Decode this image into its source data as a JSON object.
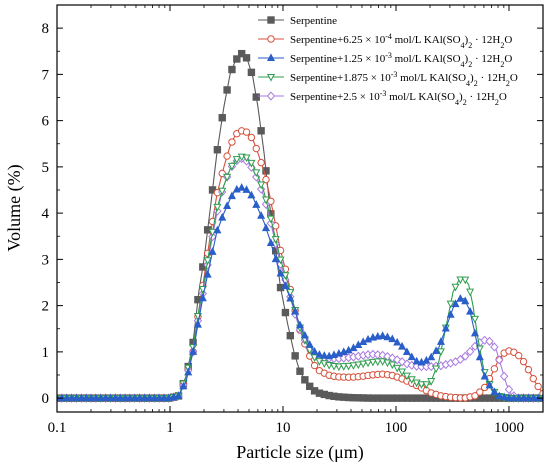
{
  "chart_data": {
    "type": "line",
    "title": "",
    "xlabel": "Particle size (μm)",
    "ylabel": "Volume (%)",
    "xscale": "log",
    "xlim": [
      0.1,
      2000
    ],
    "ylim": [
      -0.3,
      8.5
    ],
    "x_ticks": [
      0.1,
      1,
      10,
      100,
      1000
    ],
    "x_tick_labels": [
      "0.1",
      "1",
      "10",
      "100",
      "1000"
    ],
    "y_ticks": [
      0,
      1,
      2,
      3,
      4,
      5,
      6,
      7,
      8
    ],
    "y_tick_labels": [
      "0",
      "1",
      "2",
      "3",
      "4",
      "5",
      "6",
      "7",
      "8"
    ],
    "grid": false,
    "legend_position": "top-right",
    "series": [
      {
        "name": "Serpentine",
        "legend": {
          "base": "Serpentine",
          "sup_coef": "",
          "exp": "",
          "tail": "",
          "h2o_pre": "",
          "h2o_sub": "",
          "h2o_post": ""
        },
        "color": "#5a5a5a",
        "marker": "square-filled",
        "points": [
          [
            0.1,
            0
          ],
          [
            0.5,
            0
          ],
          [
            1.0,
            0
          ],
          [
            1.2,
            0.05
          ],
          [
            1.4,
            0.5
          ],
          [
            1.6,
            1.2
          ],
          [
            1.8,
            2.3
          ],
          [
            2.0,
            3.0
          ],
          [
            2.3,
            4.2
          ],
          [
            2.6,
            5.3
          ],
          [
            3.0,
            6.3
          ],
          [
            3.4,
            7.0
          ],
          [
            3.8,
            7.3
          ],
          [
            4.3,
            7.45
          ],
          [
            4.8,
            7.35
          ],
          [
            5.4,
            6.95
          ],
          [
            6.0,
            6.3
          ],
          [
            6.8,
            5.3
          ],
          [
            7.6,
            4.2
          ],
          [
            8.5,
            3.3
          ],
          [
            9.5,
            2.4
          ],
          [
            11,
            1.6
          ],
          [
            12.5,
            1.0
          ],
          [
            14,
            0.6
          ],
          [
            16,
            0.35
          ],
          [
            18,
            0.2
          ],
          [
            20,
            0.12
          ],
          [
            25,
            0.06
          ],
          [
            30,
            0.03
          ],
          [
            40,
            0.01
          ],
          [
            60,
            0
          ],
          [
            100,
            0
          ],
          [
            1000,
            0
          ],
          [
            2000,
            0
          ]
        ]
      },
      {
        "name": "Serpentine+6.25 × 10-4 mol/L KAl(SO4)2 · 12H2O",
        "legend": {
          "base": "Serpentine+6.25 × 10",
          "exp": "-4",
          "tail": " mol/L KAl(SO",
          "sub": "4",
          "tail2": ")",
          "sub2": "2",
          "h2o_pre": " · 12H",
          "h2o_sub": "2",
          "h2o_post": "O"
        },
        "color": "#d4503c",
        "marker": "circle-open",
        "points": [
          [
            0.1,
            0
          ],
          [
            0.5,
            0
          ],
          [
            1.0,
            0
          ],
          [
            1.2,
            0.05
          ],
          [
            1.4,
            0.5
          ],
          [
            1.6,
            1.0
          ],
          [
            1.8,
            1.9
          ],
          [
            2.0,
            2.6
          ],
          [
            2.3,
            3.6
          ],
          [
            2.6,
            4.4
          ],
          [
            3.0,
            5.0
          ],
          [
            3.4,
            5.45
          ],
          [
            3.8,
            5.7
          ],
          [
            4.3,
            5.78
          ],
          [
            4.8,
            5.75
          ],
          [
            5.4,
            5.6
          ],
          [
            6.0,
            5.3
          ],
          [
            6.8,
            4.9
          ],
          [
            7.6,
            4.4
          ],
          [
            8.5,
            3.8
          ],
          [
            9.5,
            3.2
          ],
          [
            11,
            2.6
          ],
          [
            12.5,
            2.0
          ],
          [
            14,
            1.5
          ],
          [
            16,
            1.1
          ],
          [
            18,
            0.8
          ],
          [
            20,
            0.62
          ],
          [
            25,
            0.5
          ],
          [
            30,
            0.46
          ],
          [
            40,
            0.45
          ],
          [
            50,
            0.47
          ],
          [
            60,
            0.5
          ],
          [
            75,
            0.52
          ],
          [
            90,
            0.5
          ],
          [
            110,
            0.43
          ],
          [
            130,
            0.35
          ],
          [
            160,
            0.25
          ],
          [
            200,
            0.12
          ],
          [
            250,
            0.05
          ],
          [
            300,
            0.02
          ],
          [
            400,
            0
          ],
          [
            500,
            0.05
          ],
          [
            600,
            0.2
          ],
          [
            700,
            0.5
          ],
          [
            800,
            0.8
          ],
          [
            900,
            0.97
          ],
          [
            1000,
            1.02
          ],
          [
            1150,
            0.98
          ],
          [
            1300,
            0.85
          ],
          [
            1500,
            0.6
          ],
          [
            1700,
            0.35
          ],
          [
            2000,
            0.1
          ]
        ]
      },
      {
        "name": "Serpentine+1.25 × 10-3 mol/L KAl(SO4)2 · 12H2O",
        "legend": {
          "base": "Serpentine+1.25 × 10",
          "exp": "-3",
          "tail": " mol/L KAl(SO",
          "sub": "4",
          "tail2": ")",
          "sub2": "2",
          "h2o_pre": " · 12H",
          "h2o_sub": "2",
          "h2o_post": "O"
        },
        "color": "#2a5ec8",
        "marker": "triangle-filled",
        "points": [
          [
            0.1,
            0
          ],
          [
            0.5,
            0
          ],
          [
            1.0,
            0
          ],
          [
            1.2,
            0.05
          ],
          [
            1.4,
            0.4
          ],
          [
            1.6,
            1.0
          ],
          [
            1.8,
            1.7
          ],
          [
            2.0,
            2.3
          ],
          [
            2.3,
            3.0
          ],
          [
            2.6,
            3.6
          ],
          [
            3.0,
            4.0
          ],
          [
            3.4,
            4.3
          ],
          [
            3.8,
            4.5
          ],
          [
            4.3,
            4.55
          ],
          [
            4.8,
            4.5
          ],
          [
            5.4,
            4.35
          ],
          [
            6.0,
            4.1
          ],
          [
            6.8,
            3.8
          ],
          [
            7.6,
            3.45
          ],
          [
            8.5,
            3.05
          ],
          [
            9.5,
            2.7
          ],
          [
            11,
            2.3
          ],
          [
            12.5,
            1.95
          ],
          [
            14,
            1.6
          ],
          [
            16,
            1.3
          ],
          [
            18,
            1.07
          ],
          [
            20,
            0.95
          ],
          [
            25,
            0.9
          ],
          [
            30,
            0.95
          ],
          [
            40,
            1.05
          ],
          [
            50,
            1.2
          ],
          [
            60,
            1.3
          ],
          [
            75,
            1.35
          ],
          [
            90,
            1.3
          ],
          [
            110,
            1.15
          ],
          [
            130,
            0.95
          ],
          [
            150,
            0.8
          ],
          [
            170,
            0.77
          ],
          [
            200,
            0.85
          ],
          [
            240,
            1.1
          ],
          [
            280,
            1.55
          ],
          [
            320,
            1.95
          ],
          [
            360,
            2.15
          ],
          [
            400,
            2.15
          ],
          [
            450,
            1.9
          ],
          [
            500,
            1.4
          ],
          [
            550,
            0.9
          ],
          [
            600,
            0.5
          ],
          [
            700,
            0.2
          ],
          [
            800,
            0.05
          ],
          [
            1000,
            0
          ],
          [
            2000,
            0
          ]
        ]
      },
      {
        "name": "Serpentine+1.875 × 10-3 mol/L KAl(SO4)2 · 12H2O",
        "legend": {
          "base": "Serpentine+1.875 × 10",
          "exp": "-3",
          "tail": " mol/L KAl(SO",
          "sub": "4",
          "tail2": ")",
          "sub2": "2",
          "h2o_pre": " · 12H",
          "h2o_sub": "2",
          "h2o_post": "O"
        },
        "color": "#2e9e4e",
        "marker": "triangle-down-open",
        "points": [
          [
            0.1,
            0
          ],
          [
            0.5,
            0
          ],
          [
            1.0,
            0
          ],
          [
            1.2,
            0.05
          ],
          [
            1.4,
            0.5
          ],
          [
            1.6,
            1.1
          ],
          [
            1.8,
            1.9
          ],
          [
            2.0,
            2.5
          ],
          [
            2.3,
            3.4
          ],
          [
            2.6,
            4.1
          ],
          [
            3.0,
            4.6
          ],
          [
            3.4,
            4.95
          ],
          [
            3.8,
            5.15
          ],
          [
            4.3,
            5.22
          ],
          [
            4.8,
            5.2
          ],
          [
            5.4,
            5.05
          ],
          [
            6.0,
            4.8
          ],
          [
            6.8,
            4.45
          ],
          [
            7.6,
            4.0
          ],
          [
            8.5,
            3.5
          ],
          [
            9.5,
            3.0
          ],
          [
            11,
            2.5
          ],
          [
            12.5,
            2.0
          ],
          [
            14,
            1.55
          ],
          [
            16,
            1.2
          ],
          [
            18,
            0.95
          ],
          [
            20,
            0.82
          ],
          [
            25,
            0.72
          ],
          [
            30,
            0.68
          ],
          [
            40,
            0.7
          ],
          [
            50,
            0.74
          ],
          [
            60,
            0.78
          ],
          [
            75,
            0.8
          ],
          [
            90,
            0.75
          ],
          [
            110,
            0.6
          ],
          [
            130,
            0.45
          ],
          [
            160,
            0.3
          ],
          [
            200,
            0.3
          ],
          [
            240,
            0.8
          ],
          [
            280,
            1.6
          ],
          [
            320,
            2.3
          ],
          [
            360,
            2.55
          ],
          [
            400,
            2.6
          ],
          [
            440,
            2.45
          ],
          [
            480,
            2.0
          ],
          [
            530,
            1.3
          ],
          [
            600,
            0.6
          ],
          [
            700,
            0.2
          ],
          [
            800,
            0.05
          ],
          [
            1000,
            0
          ],
          [
            2000,
            0
          ]
        ]
      },
      {
        "name": "Serpentine+2.5 × 10-3 mol/L KAl(SO4)2 · 12H2O",
        "legend": {
          "base": "Serpentine+2.5 × 10",
          "exp": "-3",
          "tail": " mol/L KAl(SO",
          "sub": "4",
          "tail2": ")",
          "sub2": "2",
          "h2o_pre": " · 12H",
          "h2o_sub": "2",
          "h2o_post": "O"
        },
        "color": "#a97ae0",
        "marker": "diamond-open",
        "points": [
          [
            0.1,
            0
          ],
          [
            0.5,
            0
          ],
          [
            1.0,
            0
          ],
          [
            1.2,
            0.05
          ],
          [
            1.4,
            0.45
          ],
          [
            1.6,
            1.0
          ],
          [
            1.8,
            1.8
          ],
          [
            2.0,
            2.4
          ],
          [
            2.3,
            3.3
          ],
          [
            2.6,
            4.0
          ],
          [
            3.0,
            4.6
          ],
          [
            3.4,
            4.95
          ],
          [
            3.8,
            5.12
          ],
          [
            4.3,
            5.18
          ],
          [
            4.8,
            5.12
          ],
          [
            5.4,
            4.95
          ],
          [
            6.0,
            4.7
          ],
          [
            6.8,
            4.35
          ],
          [
            7.6,
            3.9
          ],
          [
            8.5,
            3.4
          ],
          [
            9.5,
            2.9
          ],
          [
            11,
            2.4
          ],
          [
            12.5,
            1.9
          ],
          [
            14,
            1.5
          ],
          [
            16,
            1.2
          ],
          [
            18,
            1.0
          ],
          [
            20,
            0.9
          ],
          [
            25,
            0.86
          ],
          [
            30,
            0.85
          ],
          [
            40,
            0.88
          ],
          [
            50,
            0.92
          ],
          [
            60,
            0.95
          ],
          [
            75,
            0.93
          ],
          [
            90,
            0.88
          ],
          [
            110,
            0.8
          ],
          [
            130,
            0.72
          ],
          [
            160,
            0.68
          ],
          [
            200,
            0.68
          ],
          [
            250,
            0.7
          ],
          [
            300,
            0.75
          ],
          [
            350,
            0.8
          ],
          [
            400,
            0.88
          ],
          [
            450,
            1.0
          ],
          [
            500,
            1.12
          ],
          [
            550,
            1.2
          ],
          [
            600,
            1.25
          ],
          [
            650,
            1.25
          ],
          [
            700,
            1.2
          ],
          [
            770,
            1.05
          ],
          [
            850,
            0.7
          ],
          [
            950,
            0.3
          ],
          [
            1050,
            0.08
          ],
          [
            1200,
            0
          ],
          [
            2000,
            0
          ]
        ]
      }
    ]
  }
}
